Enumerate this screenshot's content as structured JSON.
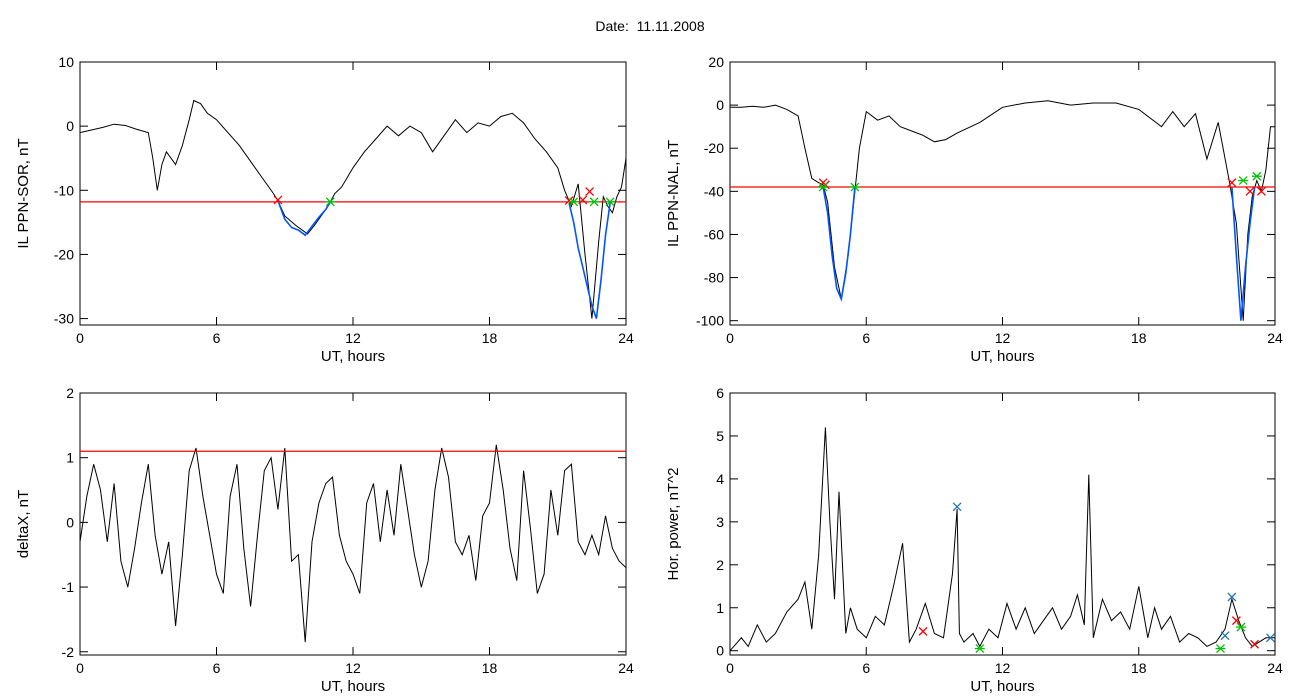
{
  "page": {
    "title": "Date:  11.11.2008"
  },
  "chart_data": [
    {
      "id": "ppn-sor",
      "type": "line",
      "ylabel": "IL PPN-SOR, nT",
      "xlabel": "UT, hours",
      "xlim": [
        0,
        24
      ],
      "ylim": [
        -31,
        10
      ],
      "xticks": [
        0,
        6,
        12,
        18,
        24
      ],
      "yticks": [
        -30,
        -20,
        -10,
        0,
        10
      ],
      "threshold": -11.8,
      "threshold_color": "#ff0000",
      "series": [
        {
          "color": "#000000",
          "x": [
            0,
            0.5,
            1,
            1.5,
            2,
            2.5,
            3,
            3.2,
            3.4,
            3.6,
            3.8,
            4,
            4.2,
            4.5,
            4.8,
            5,
            5.3,
            5.6,
            6,
            6.5,
            7,
            7.5,
            8,
            8.5,
            8.7,
            9,
            9.5,
            10,
            10.3,
            10.6,
            10.9,
            11.2,
            11.5,
            12,
            12.5,
            13,
            13.5,
            14,
            14.5,
            15,
            15.5,
            16,
            16.5,
            17,
            17.5,
            18,
            18.5,
            19,
            19.5,
            20,
            20.5,
            21,
            21.3,
            21.6,
            21.9,
            22.2,
            22.5,
            22.8,
            23,
            23.2,
            23.4,
            23.6,
            23.8,
            24
          ],
          "y": [
            -1,
            -0.6,
            -0.2,
            0.3,
            0.1,
            -0.5,
            -1,
            -5,
            -10,
            -6,
            -4,
            -5,
            -6,
            -3,
            1,
            4,
            3.5,
            2,
            1,
            -1,
            -3,
            -5.5,
            -8,
            -10.5,
            -11.6,
            -14,
            -15.5,
            -16.8,
            -15.5,
            -14,
            -12.5,
            -10.5,
            -9.5,
            -6.5,
            -4,
            -2,
            0,
            -1.5,
            0,
            -1,
            -4,
            -1.5,
            1,
            -1,
            0.5,
            0,
            1.5,
            2,
            0.5,
            -2,
            -4,
            -6.5,
            -10,
            -12.5,
            -9,
            -20,
            -30,
            -18,
            -11,
            -12.5,
            -13.5,
            -11,
            -9.5,
            -5
          ]
        },
        {
          "color": "#0055ff",
          "x": [
            8.7,
            9,
            9.3,
            9.6,
            9.9,
            10.2,
            10.5,
            10.8,
            11
          ],
          "y": [
            -11.6,
            -14.5,
            -15.8,
            -16.2,
            -17,
            -15.6,
            -14.2,
            -13,
            -11.8
          ]
        },
        {
          "color": "#0055ff",
          "x": [
            21.5,
            21.7,
            21.9,
            22.1,
            22.3,
            22.5,
            22.7,
            22.9,
            23.1,
            23.3
          ],
          "y": [
            -12,
            -15,
            -19,
            -22,
            -25,
            -28,
            -30,
            -24,
            -17,
            -12
          ]
        }
      ],
      "markers": [
        {
          "x": 8.7,
          "y": -11.5,
          "color": "#ff0000",
          "symbol": "x"
        },
        {
          "x": 11.0,
          "y": -11.8,
          "color": "#00c000",
          "symbol": "*"
        },
        {
          "x": 21.5,
          "y": -11.6,
          "color": "#ff0000",
          "symbol": "x"
        },
        {
          "x": 21.7,
          "y": -11.8,
          "color": "#00c000",
          "symbol": "*"
        },
        {
          "x": 22.1,
          "y": -11.5,
          "color": "#ff0000",
          "symbol": "x"
        },
        {
          "x": 22.4,
          "y": -10.2,
          "color": "#ff0000",
          "symbol": "x"
        },
        {
          "x": 22.6,
          "y": -11.8,
          "color": "#00c000",
          "symbol": "*"
        },
        {
          "x": 23.3,
          "y": -11.8,
          "color": "#00c000",
          "symbol": "*"
        }
      ]
    },
    {
      "id": "ppn-nal",
      "type": "line",
      "ylabel": "IL PPN-NAL, nT",
      "xlabel": "UT, hours",
      "xlim": [
        0,
        24
      ],
      "ylim": [
        -102,
        20
      ],
      "xticks": [
        0,
        6,
        12,
        18,
        24
      ],
      "yticks": [
        -100,
        -80,
        -60,
        -40,
        -20,
        0,
        20
      ],
      "threshold": -38,
      "threshold_color": "#ff0000",
      "series": [
        {
          "color": "#000000",
          "x": [
            0,
            0.5,
            1,
            1.5,
            2,
            2.5,
            3,
            3.3,
            3.6,
            3.9,
            4.1,
            4.3,
            4.6,
            4.9,
            5.2,
            5.5,
            5.7,
            6,
            6.5,
            7,
            7.5,
            8,
            8.5,
            9,
            9.5,
            10,
            11,
            12,
            13,
            14,
            15,
            16,
            17,
            18,
            18.5,
            19,
            19.5,
            20,
            20.5,
            21,
            21.5,
            22,
            22.3,
            22.6,
            22.8,
            23,
            23.2,
            23.4,
            23.6,
            23.8,
            24
          ],
          "y": [
            -1,
            -1,
            -0.5,
            -1,
            0,
            -2,
            -5,
            -20,
            -34,
            -36,
            -37,
            -45,
            -75,
            -90,
            -70,
            -40,
            -20,
            -3,
            -7,
            -5,
            -10,
            -12,
            -14,
            -17,
            -16,
            -13,
            -8,
            -1,
            1,
            2,
            0,
            1,
            1,
            -2,
            -6,
            -10,
            -3,
            -10,
            -4,
            -25,
            -8,
            -36,
            -55,
            -100,
            -60,
            -42,
            -35,
            -40,
            -30,
            -10,
            -10
          ]
        },
        {
          "color": "#0055ff",
          "x": [
            4.1,
            4.3,
            4.5,
            4.7,
            4.9,
            5.1,
            5.3,
            5.5
          ],
          "y": [
            -38,
            -50,
            -70,
            -85,
            -90,
            -78,
            -60,
            -38
          ]
        },
        {
          "color": "#0055ff",
          "x": [
            22.1,
            22.3,
            22.5,
            22.7,
            22.9,
            23.1
          ],
          "y": [
            -38,
            -70,
            -100,
            -75,
            -55,
            -38
          ]
        }
      ],
      "markers": [
        {
          "x": 4.1,
          "y": -36,
          "color": "#ff0000",
          "symbol": "x"
        },
        {
          "x": 4.2,
          "y": -37,
          "color": "#ff0000",
          "symbol": "x"
        },
        {
          "x": 4.1,
          "y": -38,
          "color": "#00c000",
          "symbol": "*"
        },
        {
          "x": 5.5,
          "y": -38,
          "color": "#00c000",
          "symbol": "*"
        },
        {
          "x": 22.1,
          "y": -36,
          "color": "#ff0000",
          "symbol": "x"
        },
        {
          "x": 22.6,
          "y": -35,
          "color": "#00c000",
          "symbol": "*"
        },
        {
          "x": 22.9,
          "y": -40,
          "color": "#ff0000",
          "symbol": "x"
        },
        {
          "x": 23.2,
          "y": -33,
          "color": "#00c000",
          "symbol": "*"
        },
        {
          "x": 23.4,
          "y": -40,
          "color": "#ff0000",
          "symbol": "x"
        }
      ]
    },
    {
      "id": "deltax",
      "type": "line",
      "ylabel": "deltaX, nT",
      "xlabel": "UT, hours",
      "xlim": [
        0,
        24
      ],
      "ylim": [
        -2.05,
        2
      ],
      "xticks": [
        0,
        6,
        12,
        18,
        24
      ],
      "yticks": [
        -2,
        -1,
        0,
        1,
        2
      ],
      "threshold": 1.1,
      "threshold_color": "#ff0000",
      "series": [
        {
          "color": "#000000",
          "x": [
            0,
            0.3,
            0.6,
            0.9,
            1.2,
            1.5,
            1.8,
            2.1,
            2.4,
            2.7,
            3,
            3.3,
            3.6,
            3.9,
            4.2,
            4.5,
            4.8,
            5.1,
            5.4,
            5.7,
            6,
            6.3,
            6.6,
            6.9,
            7.2,
            7.5,
            7.8,
            8.1,
            8.4,
            8.7,
            9,
            9.3,
            9.6,
            9.9,
            10.2,
            10.5,
            10.8,
            11.1,
            11.4,
            11.7,
            12,
            12.3,
            12.6,
            12.9,
            13.2,
            13.5,
            13.8,
            14.1,
            14.4,
            14.7,
            15,
            15.3,
            15.6,
            15.9,
            16.2,
            16.5,
            16.8,
            17.1,
            17.4,
            17.7,
            18,
            18.3,
            18.6,
            18.9,
            19.2,
            19.5,
            19.8,
            20.1,
            20.4,
            20.7,
            21,
            21.3,
            21.6,
            21.9,
            22.2,
            22.5,
            22.8,
            23.1,
            23.4,
            23.7,
            24
          ],
          "y": [
            -0.3,
            0.4,
            0.9,
            0.5,
            -0.3,
            0.6,
            -0.6,
            -1,
            -0.4,
            0.3,
            0.9,
            -0.2,
            -0.8,
            -0.3,
            -1.6,
            -0.5,
            0.8,
            1.15,
            0.4,
            -0.2,
            -0.8,
            -1.1,
            0.4,
            0.9,
            -0.4,
            -1.3,
            -0.2,
            0.8,
            1.0,
            0.2,
            1.15,
            -0.6,
            -0.5,
            -1.85,
            -0.3,
            0.3,
            0.6,
            0.7,
            -0.2,
            -0.6,
            -0.8,
            -1.1,
            0.3,
            0.6,
            -0.3,
            0.5,
            -0.2,
            0.9,
            0.2,
            -0.5,
            -1,
            -0.6,
            0.5,
            1.15,
            0.7,
            -0.3,
            -0.5,
            -0.2,
            -0.9,
            0.1,
            0.3,
            1.2,
            0.5,
            -0.4,
            -0.9,
            0.8,
            -0.1,
            -1.1,
            -0.8,
            0.5,
            -0.2,
            0.8,
            0.9,
            -0.3,
            -0.5,
            -0.2,
            -0.5,
            0.1,
            -0.4,
            -0.6,
            -0.7
          ]
        }
      ],
      "markers": []
    },
    {
      "id": "hor-power",
      "type": "line",
      "ylabel": "Hor. power, nT^2",
      "xlabel": "UT, hours",
      "xlim": [
        0,
        24
      ],
      "ylim": [
        -0.1,
        6
      ],
      "xticks": [
        0,
        6,
        12,
        18,
        24
      ],
      "yticks": [
        0,
        1,
        2,
        3,
        4,
        5,
        6
      ],
      "threshold": null,
      "series": [
        {
          "color": "#000000",
          "x": [
            0,
            0.5,
            0.8,
            1.2,
            1.6,
            2,
            2.5,
            3,
            3.3,
            3.6,
            3.9,
            4.2,
            4.4,
            4.6,
            4.8,
            5,
            5.1,
            5.3,
            5.6,
            6,
            6.4,
            6.8,
            7.2,
            7.6,
            7.9,
            8.2,
            8.6,
            9,
            9.4,
            9.8,
            10,
            10.1,
            10.3,
            10.7,
            11,
            11.4,
            11.8,
            12.2,
            12.6,
            13,
            13.4,
            13.8,
            14.2,
            14.6,
            15,
            15.3,
            15.6,
            15.8,
            16,
            16.4,
            16.8,
            17.2,
            17.6,
            18,
            18.4,
            18.7,
            19,
            19.4,
            19.8,
            20.2,
            20.6,
            21,
            21.4,
            21.8,
            22.1,
            22.4,
            22.7,
            23,
            23.3,
            23.6,
            24
          ],
          "y": [
            0,
            0.3,
            0.1,
            0.6,
            0.2,
            0.4,
            0.9,
            1.2,
            1.6,
            0.5,
            2.2,
            5.2,
            3,
            1.2,
            3.7,
            1.5,
            0.4,
            1,
            0.5,
            0.3,
            0.8,
            0.6,
            1.5,
            2.5,
            0.2,
            0.5,
            1.1,
            0.4,
            0.3,
            1.8,
            3.3,
            0.4,
            0.2,
            0.4,
            0.1,
            0.5,
            0.3,
            1.1,
            0.5,
            1.0,
            0.4,
            0.7,
            1.0,
            0.5,
            0.8,
            1.3,
            0.6,
            4.1,
            0.3,
            1.2,
            0.7,
            0.9,
            0.5,
            1.5,
            0.3,
            1.0,
            0.5,
            0.8,
            0.2,
            0.4,
            0.3,
            0.1,
            0.2,
            0.5,
            1.2,
            0.7,
            0.3,
            0.1,
            0.2,
            0.3,
            0.3
          ]
        }
      ],
      "markers": [
        {
          "x": 10.0,
          "y": 3.35,
          "color": "#1f77b4",
          "symbol": "x"
        },
        {
          "x": 22.1,
          "y": 1.25,
          "color": "#1f77b4",
          "symbol": "x"
        },
        {
          "x": 8.5,
          "y": 0.45,
          "color": "#ff0000",
          "symbol": "x"
        },
        {
          "x": 22.3,
          "y": 0.7,
          "color": "#ff0000",
          "symbol": "x"
        },
        {
          "x": 21.8,
          "y": 0.35,
          "color": "#1f77b4",
          "symbol": "x"
        },
        {
          "x": 22.5,
          "y": 0.55,
          "color": "#00c000",
          "symbol": "*"
        },
        {
          "x": 23.1,
          "y": 0.15,
          "color": "#ff0000",
          "symbol": "x"
        },
        {
          "x": 23.8,
          "y": 0.3,
          "color": "#1f77b4",
          "symbol": "x"
        },
        {
          "x": 11.0,
          "y": 0.05,
          "color": "#00c000",
          "symbol": "*"
        },
        {
          "x": 21.6,
          "y": 0.05,
          "color": "#00c000",
          "symbol": "*"
        }
      ]
    }
  ]
}
